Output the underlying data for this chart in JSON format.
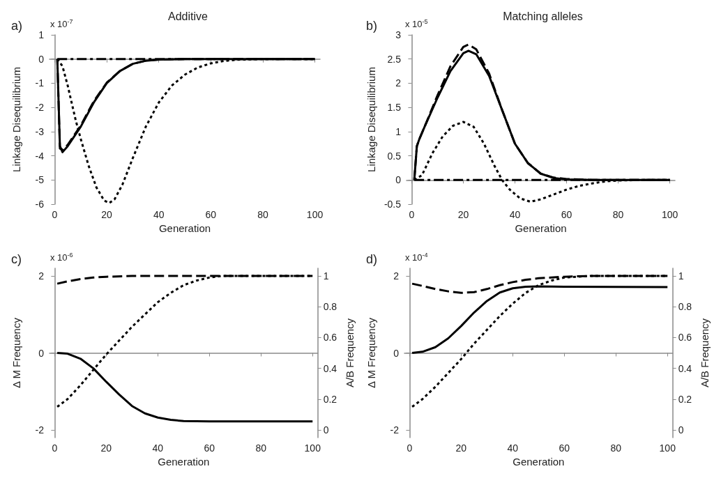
{
  "chart_data": [
    {
      "type": "line",
      "title": "Additive",
      "xlabel": "Generation",
      "ylabel": "Linkage Disequilibrium",
      "annotations": [
        "a)",
        "x 10$^{-7}$"
      ],
      "xlim": [
        -2,
        102
      ],
      "xticks": [
        0,
        20,
        40,
        60,
        80,
        100
      ],
      "ylim": [
        -6,
        1
      ],
      "yticks": [
        -6,
        -5,
        -4,
        -3,
        -2,
        -1,
        0,
        1
      ],
      "series": [
        {
          "color": "#000000",
          "line_style": "dashdot",
          "x": [
            1,
            100
          ],
          "values": [
            0,
            0
          ]
        },
        {
          "color": "#000000",
          "line_style": "dashed",
          "x": [
            1,
            2,
            3,
            5,
            10,
            15,
            20,
            25,
            30,
            35,
            40,
            50,
            100
          ],
          "values": [
            0,
            -3.7,
            -3.75,
            -3.55,
            -2.75,
            -1.75,
            -0.98,
            -0.5,
            -0.2,
            -0.07,
            -0.02,
            0,
            0
          ]
        },
        {
          "color": "#000000",
          "line_style": "solid",
          "x": [
            1,
            2,
            3,
            5,
            10,
            15,
            20,
            25,
            30,
            35,
            40,
            50,
            100
          ],
          "values": [
            0,
            -3.6,
            -3.85,
            -3.6,
            -2.8,
            -1.8,
            -1.0,
            -0.5,
            -0.2,
            -0.07,
            -0.02,
            0,
            0
          ]
        },
        {
          "color": "#000000",
          "line_style": "dotted",
          "x": [
            1,
            3,
            5,
            8,
            10,
            13,
            16,
            19,
            21,
            23,
            26,
            30,
            35,
            40,
            45,
            50,
            55,
            60,
            65,
            70,
            80,
            100
          ],
          "values": [
            0,
            -0.3,
            -1.1,
            -2.5,
            -3.3,
            -4.4,
            -5.3,
            -5.85,
            -5.95,
            -5.8,
            -5.2,
            -4.1,
            -2.8,
            -1.8,
            -1.1,
            -0.65,
            -0.35,
            -0.18,
            -0.08,
            -0.03,
            0,
            0
          ]
        }
      ]
    },
    {
      "type": "line",
      "title": "Matching alleles",
      "xlabel": "Generation",
      "ylabel": "Linkage Disequilibrium",
      "annotations": [
        "b)",
        "x 10$^{-5}$"
      ],
      "xlim": [
        -2,
        102
      ],
      "xticks": [
        0,
        20,
        40,
        60,
        80,
        100
      ],
      "ylim": [
        -0.5,
        3
      ],
      "yticks": [
        -0.5,
        0,
        0.5,
        1,
        1.5,
        2,
        2.5,
        3
      ],
      "series": [
        {
          "color": "#000000",
          "line_style": "dashdot",
          "x": [
            1,
            100
          ],
          "values": [
            0,
            0
          ]
        },
        {
          "color": "#000000",
          "line_style": "dashed",
          "x": [
            1,
            2,
            3,
            5,
            10,
            15,
            20,
            22,
            25,
            30,
            35,
            40,
            45,
            50,
            55,
            60,
            70,
            100
          ],
          "values": [
            0,
            0.7,
            0.85,
            1.1,
            1.75,
            2.35,
            2.75,
            2.8,
            2.7,
            2.2,
            1.45,
            0.75,
            0.35,
            0.13,
            0.05,
            0.02,
            0,
            0
          ]
        },
        {
          "color": "#000000",
          "line_style": "solid",
          "x": [
            1,
            2,
            3,
            5,
            10,
            15,
            20,
            22,
            25,
            30,
            35,
            40,
            45,
            50,
            55,
            60,
            70,
            100
          ],
          "values": [
            0,
            0.7,
            0.85,
            1.1,
            1.7,
            2.25,
            2.62,
            2.67,
            2.6,
            2.15,
            1.45,
            0.75,
            0.35,
            0.13,
            0.04,
            0.01,
            0,
            0
          ]
        },
        {
          "color": "#000000",
          "line_style": "dotted",
          "x": [
            1,
            4,
            8,
            12,
            16,
            20,
            24,
            28,
            32,
            35,
            38,
            42,
            46,
            50,
            55,
            60,
            65,
            70,
            75,
            80,
            90,
            100
          ],
          "values": [
            0,
            0.1,
            0.55,
            0.9,
            1.12,
            1.2,
            1.1,
            0.75,
            0.3,
            0,
            -0.2,
            -0.38,
            -0.45,
            -0.4,
            -0.3,
            -0.2,
            -0.12,
            -0.07,
            -0.03,
            -0.01,
            0,
            0
          ]
        }
      ]
    },
    {
      "type": "line",
      "xlabel": "Generation",
      "ylabel": "Δ M Frequency",
      "y2label": "A/B Frequency",
      "annotations": [
        "c)",
        "x 10$^{-6}$"
      ],
      "xlim": [
        -2,
        102
      ],
      "xticks": [
        0,
        20,
        40,
        60,
        80,
        100
      ],
      "ylim": [
        -2.2,
        2.2
      ],
      "yticks": [
        -2,
        0,
        2
      ],
      "y2lim": [
        -0.05,
        1.05
      ],
      "y2ticks": [
        0,
        0.2,
        0.4,
        0.6,
        0.8,
        1
      ],
      "series": [
        {
          "color": "#000000",
          "line_style": "solid",
          "x": [
            1,
            5,
            10,
            15,
            20,
            25,
            30,
            35,
            40,
            45,
            50,
            60,
            100
          ],
          "values": [
            0,
            -0.02,
            -0.15,
            -0.4,
            -0.75,
            -1.08,
            -1.38,
            -1.57,
            -1.68,
            -1.74,
            -1.77,
            -1.78,
            -1.78
          ]
        },
        {
          "color": "#000000",
          "line_style": "dashed",
          "axis": "y2",
          "x": [
            1,
            5,
            10,
            15,
            20,
            30,
            100
          ],
          "values": [
            0.95,
            0.965,
            0.98,
            0.99,
            0.995,
            1,
            1
          ]
        },
        {
          "color": "#000000",
          "line_style": "dotted",
          "axis": "y2",
          "x": [
            1,
            5,
            10,
            15,
            20,
            25,
            30,
            35,
            40,
            45,
            50,
            55,
            60,
            65,
            100
          ],
          "values": [
            0.15,
            0.2,
            0.29,
            0.39,
            0.49,
            0.58,
            0.67,
            0.75,
            0.83,
            0.89,
            0.94,
            0.97,
            0.99,
            1,
            1
          ]
        }
      ]
    },
    {
      "type": "line",
      "xlabel": "Generation",
      "ylabel": "Δ M Frequency",
      "y2label": "A/B Frequency",
      "annotations": [
        "d)",
        "x 10$^{-4}$"
      ],
      "xlim": [
        -2,
        102
      ],
      "xticks": [
        0,
        20,
        40,
        60,
        80,
        100
      ],
      "ylim": [
        -2.2,
        2.2
      ],
      "yticks": [
        -2,
        0,
        2
      ],
      "y2lim": [
        -0.05,
        1.05
      ],
      "y2ticks": [
        0,
        0.2,
        0.4,
        0.6,
        0.8,
        1
      ],
      "series": [
        {
          "color": "#000000",
          "line_style": "solid",
          "x": [
            1,
            5,
            10,
            15,
            20,
            25,
            30,
            35,
            40,
            45,
            50,
            60,
            100
          ],
          "values": [
            0,
            0.03,
            0.15,
            0.38,
            0.7,
            1.05,
            1.35,
            1.57,
            1.68,
            1.72,
            1.73,
            1.72,
            1.71
          ]
        },
        {
          "color": "#000000",
          "line_style": "dashed",
          "axis": "y2",
          "x": [
            1,
            5,
            10,
            15,
            20,
            25,
            30,
            35,
            40,
            45,
            50,
            60,
            70,
            100
          ],
          "values": [
            0.95,
            0.935,
            0.915,
            0.9,
            0.89,
            0.895,
            0.915,
            0.94,
            0.96,
            0.975,
            0.985,
            0.995,
            1,
            1
          ]
        },
        {
          "color": "#000000",
          "line_style": "dotted",
          "axis": "y2",
          "x": [
            1,
            5,
            10,
            15,
            20,
            25,
            30,
            35,
            40,
            45,
            50,
            55,
            60,
            70,
            100
          ],
          "values": [
            0.15,
            0.2,
            0.28,
            0.37,
            0.46,
            0.56,
            0.65,
            0.74,
            0.82,
            0.89,
            0.94,
            0.97,
            0.99,
            1,
            1
          ]
        }
      ]
    }
  ]
}
